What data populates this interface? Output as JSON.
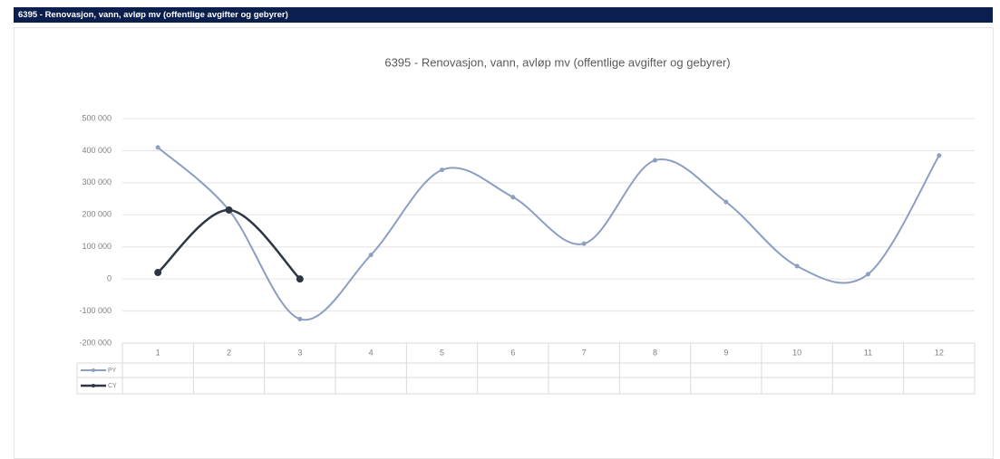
{
  "header": {
    "title": "6395 - Renovasjon, vann, avløp mv (offentlige avgifter og gebyrer)"
  },
  "chart_data": {
    "type": "line",
    "title": "6395 - Renovasjon, vann, avløp mv (offentlige avgifter og gebyrer)",
    "categories": [
      "1",
      "2",
      "3",
      "4",
      "5",
      "6",
      "7",
      "8",
      "9",
      "10",
      "11",
      "12"
    ],
    "series": [
      {
        "name": "PY",
        "color": "#8d9fc0",
        "values": [
          410000,
          215000,
          -125000,
          75000,
          340000,
          255000,
          110000,
          370000,
          240000,
          40000,
          15000,
          385000
        ]
      },
      {
        "name": "CY",
        "color": "#2e3644",
        "values": [
          20000,
          215000,
          0,
          null,
          null,
          null,
          null,
          null,
          null,
          null,
          null,
          null
        ]
      }
    ],
    "ylim": [
      -200000,
      500000
    ],
    "yticks": [
      {
        "value": -200000,
        "label": "-200 000"
      },
      {
        "value": -100000,
        "label": "-100 000"
      },
      0,
      {
        "value": 100000,
        "label": "100 000"
      },
      {
        "value": 200000,
        "label": "200 000"
      },
      {
        "value": 300000,
        "label": "300 000"
      },
      {
        "value": 400000,
        "label": "400 000"
      },
      {
        "value": 500000,
        "label": "500 000"
      }
    ],
    "grid": true,
    "smooth": true
  }
}
